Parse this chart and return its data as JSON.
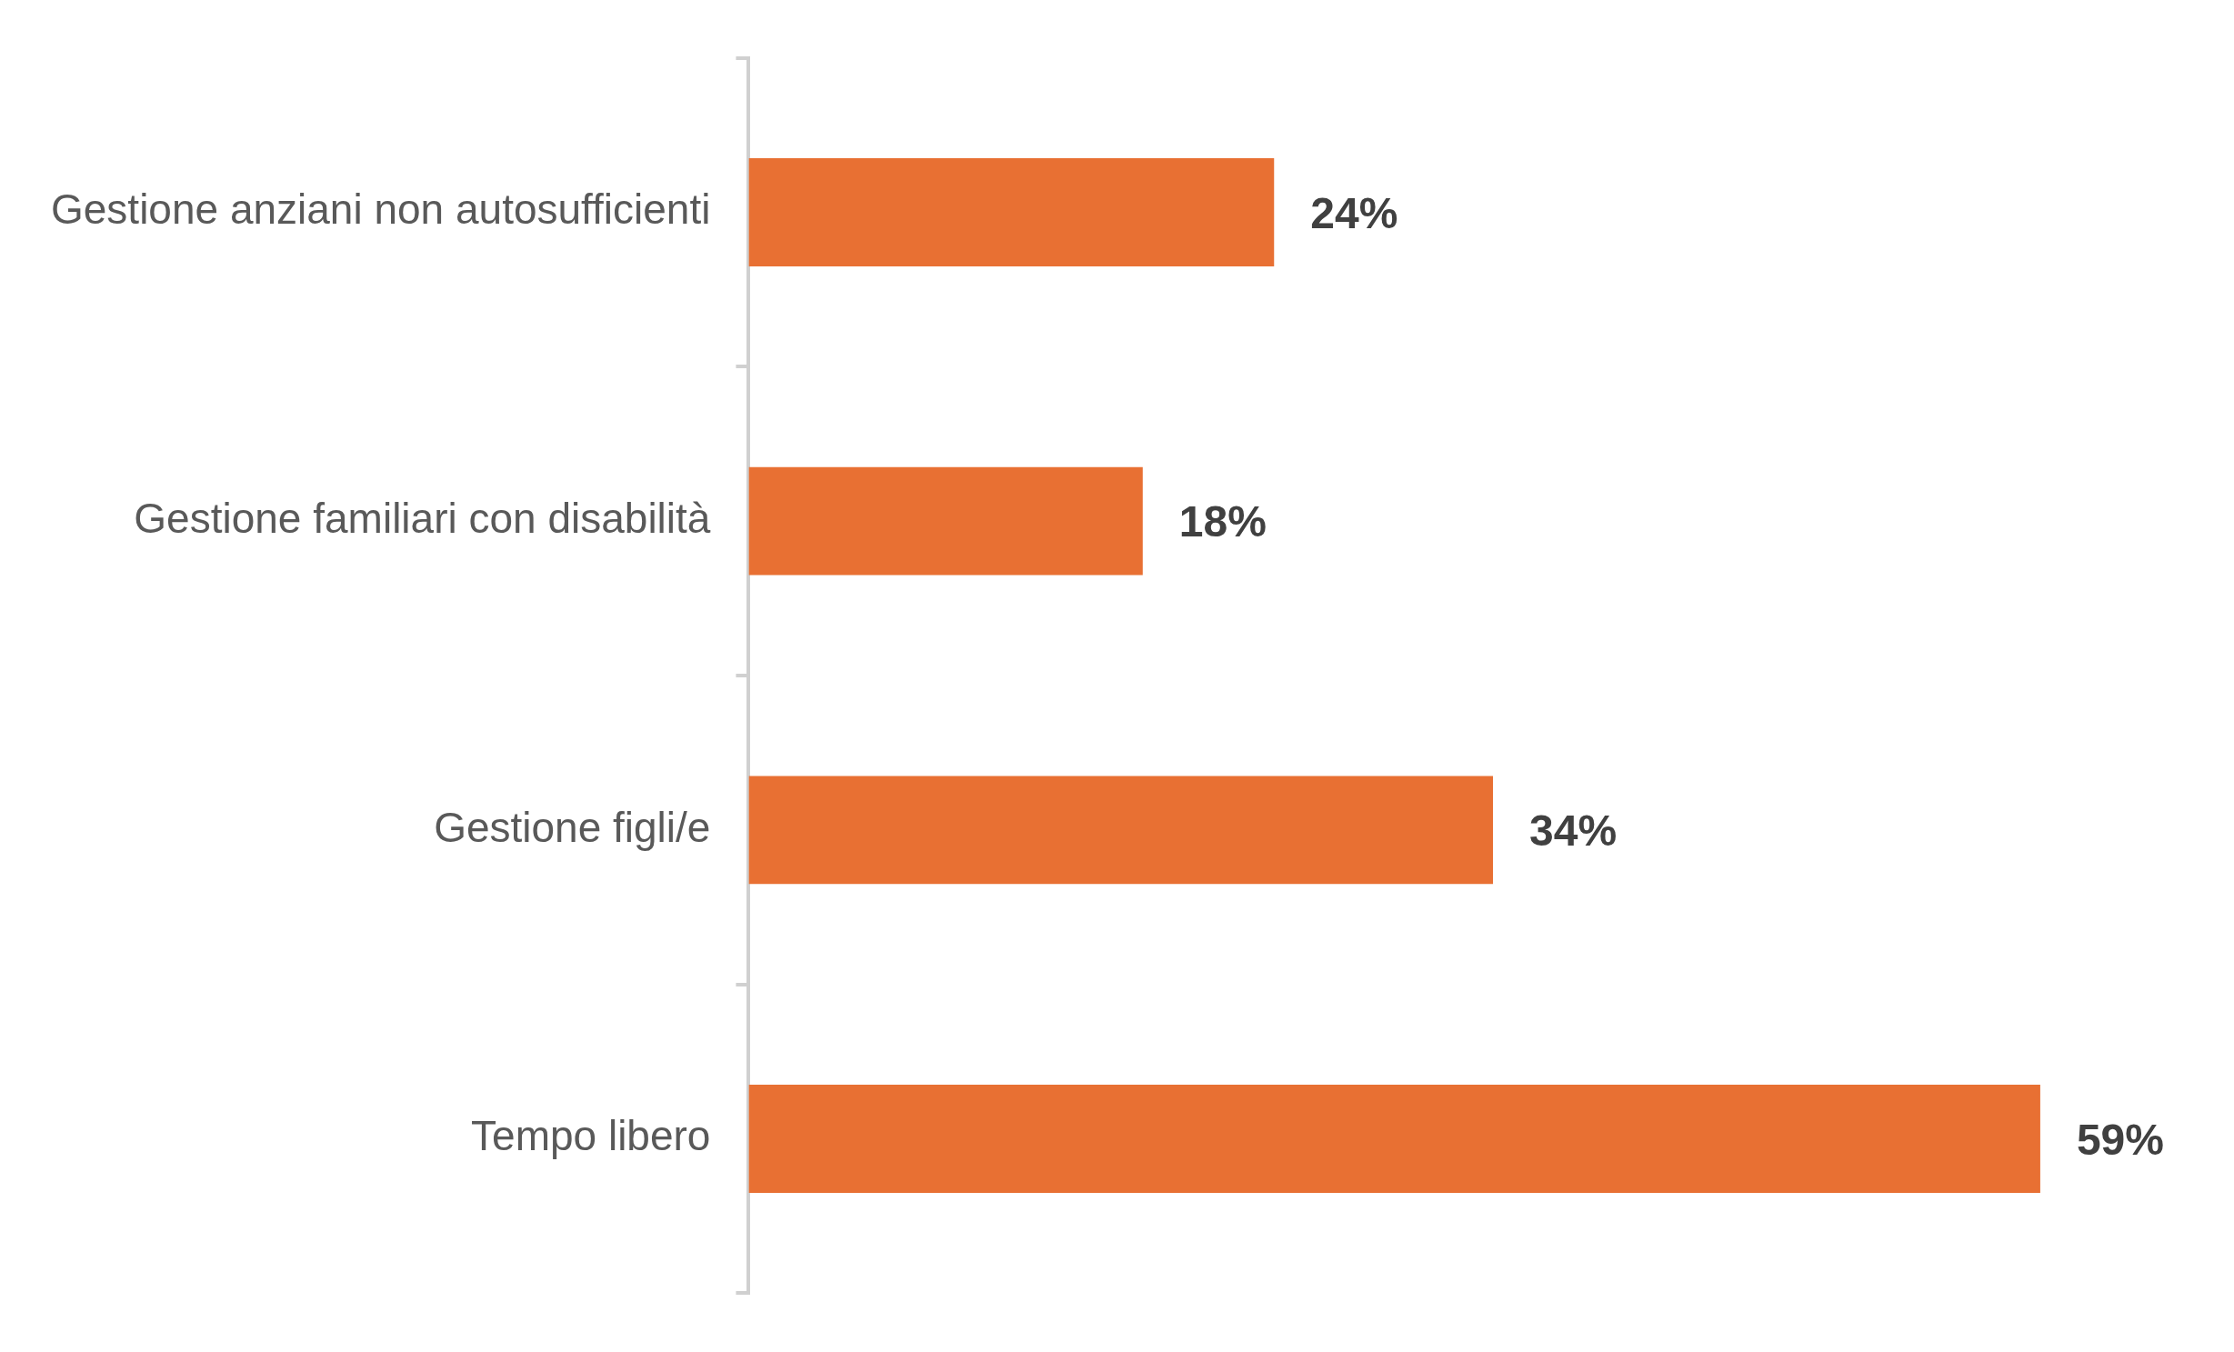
{
  "chart_data": {
    "type": "bar",
    "orientation": "horizontal",
    "categories": [
      "Gestione anziani non autosufficienti",
      "Gestione familiari con disabilità",
      "Gestione figli/e",
      "Tempo libero"
    ],
    "values": [
      24,
      18,
      34,
      59
    ],
    "value_labels": [
      "24%",
      "18%",
      "34%",
      "59%"
    ],
    "color": "#e87033",
    "tick_labels": "y",
    "legend": false
  }
}
